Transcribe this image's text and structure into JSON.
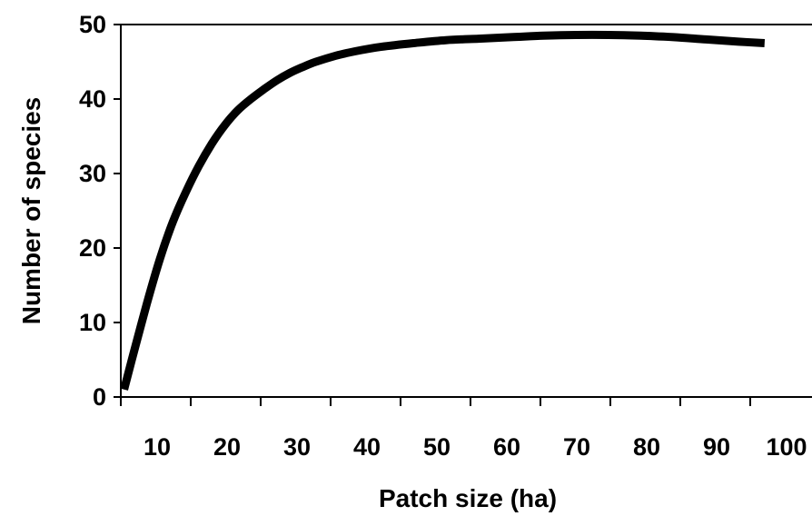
{
  "chart_data": {
    "type": "line",
    "title": "",
    "xlabel": "Patch size (ha)",
    "ylabel": "Number of species",
    "xlim": [
      0,
      100
    ],
    "ylim": [
      0,
      50
    ],
    "xticks": [
      10,
      20,
      30,
      40,
      50,
      60,
      70,
      80,
      90,
      100
    ],
    "yticks": [
      0,
      10,
      20,
      30,
      40,
      50
    ],
    "grid": false,
    "legend": "none",
    "series": [
      {
        "color": "#000000",
        "x": [
          0.5,
          2,
          4,
          6,
          8,
          10,
          12,
          14,
          16,
          18,
          20,
          22,
          24,
          26,
          28,
          30,
          33,
          36,
          40,
          45,
          50,
          55,
          60,
          65,
          70,
          75,
          80,
          85,
          90,
          95,
          99
        ],
        "y": [
          1,
          6,
          12.5,
          18.5,
          23.5,
          27.5,
          31,
          34,
          36.5,
          38.5,
          40,
          41.3,
          42.5,
          43.5,
          44.3,
          45,
          45.8,
          46.4,
          47,
          47.5,
          47.9,
          48.1,
          48.3,
          48.5,
          48.6,
          48.6,
          48.5,
          48.3,
          48.0,
          47.7,
          47.5
        ]
      }
    ]
  }
}
